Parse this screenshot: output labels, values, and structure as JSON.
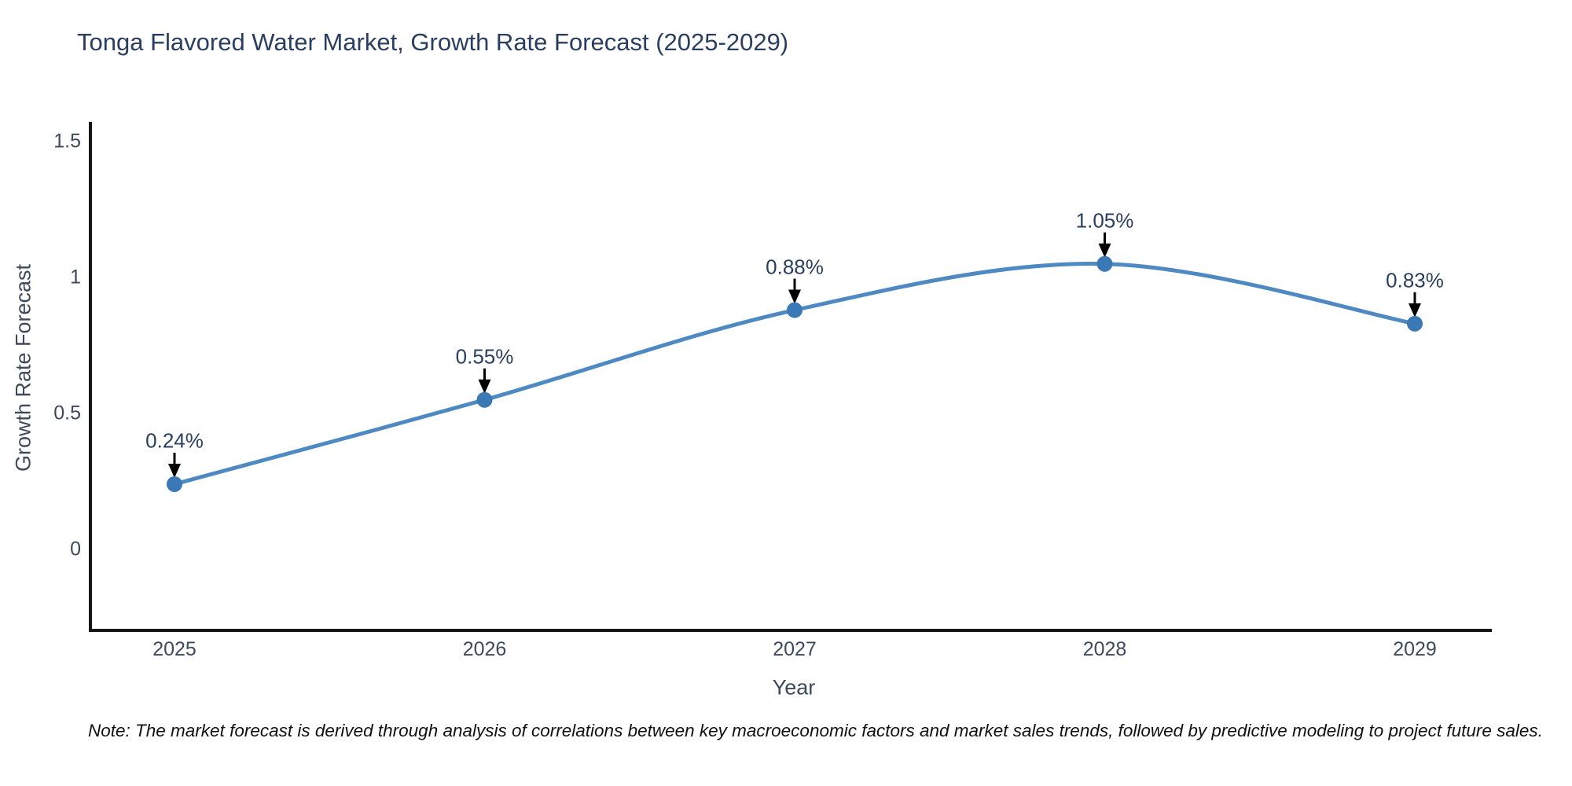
{
  "title": "Tonga Flavored Water Market, Growth Rate Forecast (2025-2029)",
  "note": "Note: The market forecast is derived through analysis of correlations between key macroeconomic factors and market sales trends, followed by predictive modeling to project future sales.",
  "chart_data": {
    "type": "line",
    "title": "Tonga Flavored Water Market, Growth Rate Forecast (2025-2029)",
    "xlabel": "Year",
    "ylabel": "Growth Rate Forecast",
    "x": [
      "2025",
      "2026",
      "2027",
      "2028",
      "2029"
    ],
    "values": [
      0.24,
      0.55,
      0.88,
      1.05,
      0.83
    ],
    "point_labels": [
      "0.24%",
      "0.55%",
      "0.88%",
      "1.05%",
      "0.83%"
    ],
    "yticks": [
      0,
      0.5,
      1,
      1.5
    ],
    "ytick_labels": [
      "0",
      "0.5",
      "1",
      "1.5"
    ],
    "ylim": [
      -0.3,
      1.57
    ],
    "grid": false,
    "legend": false,
    "line_shape": "spline",
    "annotation_arrows": true,
    "colors": {
      "line": "#4e8ac1",
      "marker": "#3a79b5",
      "arrow": "#000000",
      "axis": "#161616",
      "title_text": "#2a3f5f",
      "tick_text": "#3d4a5c"
    }
  }
}
